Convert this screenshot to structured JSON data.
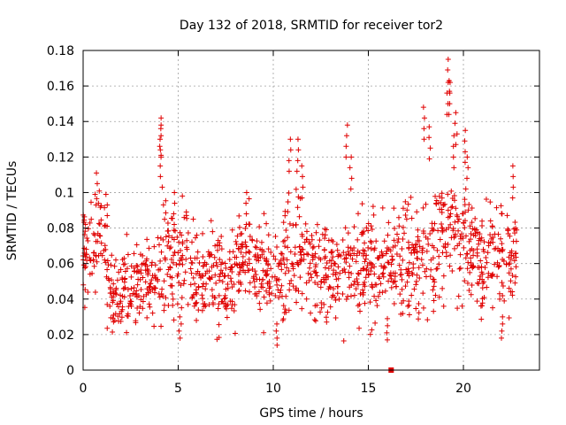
{
  "chart_data": {
    "type": "scatter",
    "title": "Day 132 of 2018, SRMTID for receiver tor2",
    "xlabel": "GPS time / hours",
    "ylabel": "SRMTID / TECUs",
    "xlim": [
      0,
      24
    ],
    "ylim": [
      0,
      0.18
    ],
    "xticks": [
      0,
      5,
      10,
      15,
      20
    ],
    "xtick_labels": [
      "0",
      "5",
      "10",
      "15",
      "20"
    ],
    "yticks": [
      0,
      0.02,
      0.04,
      0.06,
      0.08,
      0.1,
      0.12,
      0.14,
      0.16,
      0.18
    ],
    "ytick_labels": [
      "0",
      "0.02",
      "0.04",
      "0.06",
      "0.08",
      "0.1",
      "0.12",
      "0.14",
      "0.16",
      "0.18"
    ],
    "grid": true,
    "marker": "plus",
    "series_color": "#e00000",
    "data_hours_range": [
      0,
      22.8
    ],
    "missing_marker": {
      "x": 16.2,
      "y": 0
    },
    "series": [
      {
        "name": "SRMTID",
        "segments": [
          {
            "x0": 0.0,
            "x1": 0.6,
            "mean": 0.065,
            "spread": 0.015,
            "n": 40
          },
          {
            "x0": 0.6,
            "x1": 1.2,
            "mean": 0.075,
            "spread": 0.012,
            "n": 30
          },
          {
            "x0": 1.2,
            "x1": 3.0,
            "mean": 0.045,
            "spread": 0.012,
            "n": 110
          },
          {
            "x0": 3.0,
            "x1": 4.0,
            "mean": 0.05,
            "spread": 0.012,
            "n": 60
          },
          {
            "x0": 4.0,
            "x1": 5.5,
            "mean": 0.065,
            "spread": 0.018,
            "n": 90
          },
          {
            "x0": 5.5,
            "x1": 8.0,
            "mean": 0.05,
            "spread": 0.014,
            "n": 150
          },
          {
            "x0": 8.0,
            "x1": 9.0,
            "mean": 0.065,
            "spread": 0.014,
            "n": 60
          },
          {
            "x0": 9.0,
            "x1": 10.5,
            "mean": 0.055,
            "spread": 0.014,
            "n": 90
          },
          {
            "x0": 10.5,
            "x1": 12.0,
            "mean": 0.065,
            "spread": 0.018,
            "n": 90
          },
          {
            "x0": 12.0,
            "x1": 14.0,
            "mean": 0.055,
            "spread": 0.016,
            "n": 120
          },
          {
            "x0": 14.0,
            "x1": 16.5,
            "mean": 0.058,
            "spread": 0.016,
            "n": 150
          },
          {
            "x0": 16.5,
            "x1": 18.5,
            "mean": 0.062,
            "spread": 0.018,
            "n": 120
          },
          {
            "x0": 18.5,
            "x1": 20.5,
            "mean": 0.075,
            "spread": 0.022,
            "n": 120
          },
          {
            "x0": 20.5,
            "x1": 22.8,
            "mean": 0.062,
            "spread": 0.016,
            "n": 140
          }
        ],
        "peaks": [
          {
            "x": 0.7,
            "y": 0.111
          },
          {
            "x": 1.2,
            "y": 0.099
          },
          {
            "x": 4.1,
            "y": 0.142
          },
          {
            "x": 4.1,
            "y": 0.121
          },
          {
            "x": 4.8,
            "y": 0.1
          },
          {
            "x": 8.6,
            "y": 0.1
          },
          {
            "x": 10.9,
            "y": 0.13
          },
          {
            "x": 11.3,
            "y": 0.13
          },
          {
            "x": 11.5,
            "y": 0.115
          },
          {
            "x": 13.9,
            "y": 0.138
          },
          {
            "x": 14.1,
            "y": 0.12
          },
          {
            "x": 17.9,
            "y": 0.148
          },
          {
            "x": 18.2,
            "y": 0.137
          },
          {
            "x": 19.2,
            "y": 0.175
          },
          {
            "x": 19.3,
            "y": 0.162
          },
          {
            "x": 19.6,
            "y": 0.145
          },
          {
            "x": 19.5,
            "y": 0.132
          },
          {
            "x": 20.1,
            "y": 0.135
          },
          {
            "x": 20.2,
            "y": 0.12
          },
          {
            "x": 22.6,
            "y": 0.115
          },
          {
            "x": 10.2,
            "y": 0.014
          },
          {
            "x": 5.1,
            "y": 0.018
          },
          {
            "x": 22.0,
            "y": 0.018
          },
          {
            "x": 16.0,
            "y": 0.017
          },
          {
            "x": 4.1,
            "y": 0.138
          },
          {
            "x": 19.2,
            "y": 0.162
          }
        ]
      }
    ]
  }
}
